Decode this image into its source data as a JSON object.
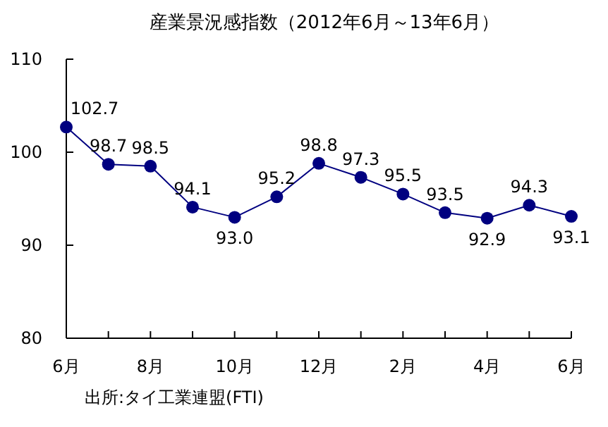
{
  "chart_data": {
    "type": "line",
    "title": "産業景況感指数（2012年6月～13年6月）",
    "categories": [
      "6月",
      null,
      "8月",
      null,
      "10月",
      null,
      "12月",
      null,
      "2月",
      null,
      "4月",
      null,
      "6月"
    ],
    "series": [
      {
        "color": "#000080",
        "values": [
          102.7,
          98.7,
          98.5,
          94.1,
          93.0,
          95.2,
          98.8,
          97.3,
          95.5,
          93.5,
          92.9,
          94.3,
          93.1
        ],
        "value_labels": [
          "102.7",
          "98.7",
          "98.5",
          "94.1",
          "93.0",
          "95.2",
          "98.8",
          "97.3",
          "95.5",
          "93.5",
          "92.9",
          "94.3",
          "93.1"
        ]
      }
    ],
    "ylim": [
      80,
      110
    ],
    "yticks": [
      80,
      90,
      100,
      110
    ],
    "marker": "circle",
    "grid": false,
    "annotations": [
      "出所:タイ工業連盟(FTI)"
    ]
  }
}
